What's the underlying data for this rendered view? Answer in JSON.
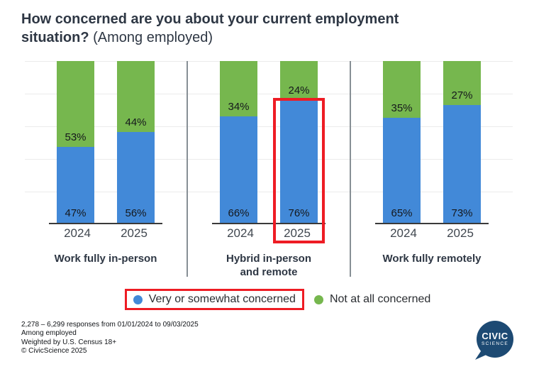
{
  "title": {
    "line1": "How concerned are you about your current employment",
    "line2_bold": "situation?",
    "line2_normal": " (Among employed)"
  },
  "chart_data": {
    "type": "bar",
    "subtype": "stacked-100-percent-column",
    "ylim": [
      0,
      100
    ],
    "gridlines": "horizontal, every 20%, light gray",
    "categories": [
      "2024",
      "2025"
    ],
    "value_label_format": "{v}%",
    "groups": [
      {
        "label": "Work fully in-person",
        "series": [
          {
            "name": "Very or somewhat concerned",
            "color": "#4289d8",
            "values": [
              47,
              56
            ]
          },
          {
            "name": "Not at all concerned",
            "color": "#76b74e",
            "values": [
              53,
              44
            ]
          }
        ]
      },
      {
        "label": "Hybrid in-person\nand remote",
        "series": [
          {
            "name": "Very or somewhat concerned",
            "color": "#4289d8",
            "values": [
              66,
              76
            ]
          },
          {
            "name": "Not at all concerned",
            "color": "#76b74e",
            "values": [
              34,
              24
            ]
          }
        ],
        "highlight": {
          "category": "2025",
          "series": "Very or somewhat concerned",
          "style": "red-outline-box"
        }
      },
      {
        "label": "Work fully remotely",
        "series": [
          {
            "name": "Very or somewhat concerned",
            "color": "#4289d8",
            "values": [
              65,
              73
            ]
          },
          {
            "name": "Not at all concerned",
            "color": "#76b74e",
            "values": [
              35,
              27
            ]
          }
        ]
      }
    ]
  },
  "legend": {
    "items": [
      {
        "label": "Very or somewhat concerned",
        "color": "#4289d8",
        "highlighted": true
      },
      {
        "label": "Not at all concerned",
        "color": "#76b74e",
        "highlighted": false
      }
    ]
  },
  "footer": {
    "lines": [
      "2,278 – 6,299 responses from 01/01/2024 to 09/03/2025",
      "Among employed",
      "Weighted by U.S. Census 18+",
      "© CivicScience 2025"
    ]
  },
  "logo": {
    "line1": "CIVIC",
    "line2": "SCIENCE",
    "color": "#1d4a73"
  },
  "colors": {
    "concerned_blue": "#4289d8",
    "not_concerned_green": "#76b74e",
    "highlight_red": "#ee1c24",
    "title_text": "#2e3744",
    "divider_gray": "#878f95"
  }
}
